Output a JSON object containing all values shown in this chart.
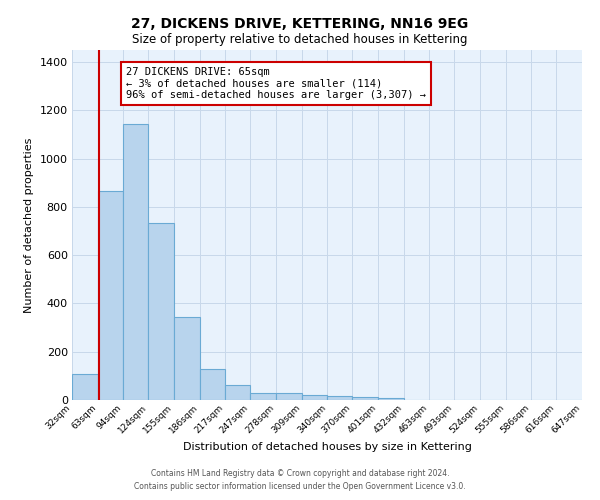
{
  "title": "27, DICKENS DRIVE, KETTERING, NN16 9EG",
  "subtitle": "Size of property relative to detached houses in Kettering",
  "xlabel": "Distribution of detached houses by size in Kettering",
  "ylabel": "Number of detached properties",
  "bar_color": "#b8d4ed",
  "bar_edgecolor": "#6aaad4",
  "background_color": "#e8f2fc",
  "grid_color": "#c8d8ea",
  "bin_edges": [
    32,
    63,
    94,
    124,
    155,
    186,
    217,
    247,
    278,
    309,
    340,
    370,
    401,
    432,
    463,
    493,
    524,
    555,
    586,
    616,
    647
  ],
  "bin_labels": [
    "32sqm",
    "63sqm",
    "94sqm",
    "124sqm",
    "155sqm",
    "186sqm",
    "217sqm",
    "247sqm",
    "278sqm",
    "309sqm",
    "340sqm",
    "370sqm",
    "401sqm",
    "432sqm",
    "463sqm",
    "493sqm",
    "524sqm",
    "555sqm",
    "586sqm",
    "616sqm",
    "647sqm"
  ],
  "counts": [
    107,
    867,
    1143,
    733,
    343,
    130,
    63,
    30,
    30,
    20,
    16,
    13,
    7,
    0,
    0,
    0,
    0,
    0,
    0,
    0
  ],
  "property_size": 65,
  "property_line_color": "#cc0000",
  "annotation_line1": "27 DICKENS DRIVE: 65sqm",
  "annotation_line2": "← 3% of detached houses are smaller (114)",
  "annotation_line3": "96% of semi-detached houses are larger (3,307) →",
  "annotation_box_color": "#ffffff",
  "annotation_box_edgecolor": "#cc0000",
  "ylim": [
    0,
    1450
  ],
  "yticks": [
    0,
    200,
    400,
    600,
    800,
    1000,
    1200,
    1400
  ],
  "footer_line1": "Contains HM Land Registry data © Crown copyright and database right 2024.",
  "footer_line2": "Contains public sector information licensed under the Open Government Licence v3.0."
}
